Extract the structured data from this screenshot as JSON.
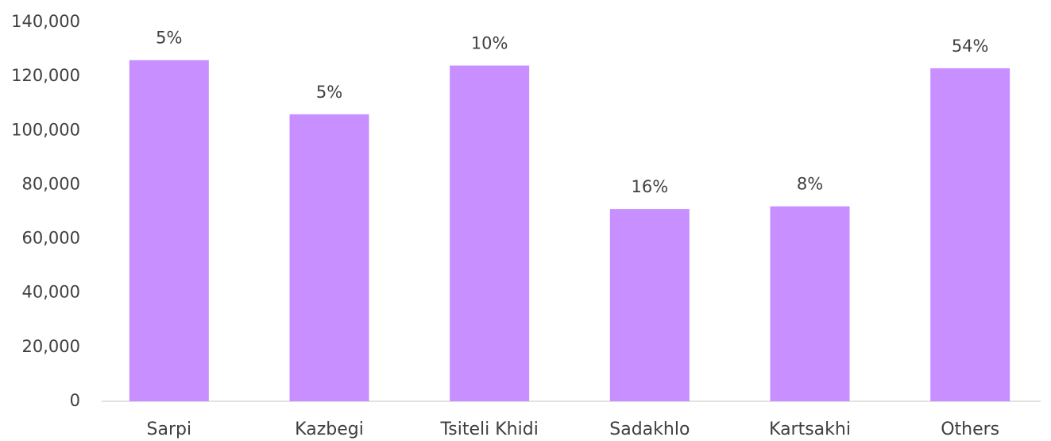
{
  "chart_data": {
    "type": "bar",
    "categories": [
      "Sarpi",
      "Kazbegi",
      "Tsiteli Khidi",
      "Sadakhlo",
      "Kartsakhi",
      "Others"
    ],
    "values": [
      126000,
      106000,
      124000,
      71000,
      72000,
      123000
    ],
    "annotations": [
      "5%",
      "5%",
      "10%",
      "16%",
      "8%",
      "54%"
    ],
    "color": "#c78fff",
    "ylim": [
      0,
      140000
    ],
    "yticks": [
      0,
      {
        "value": 20000,
        "label": "20,000"
      },
      {
        "value": 40000,
        "label": "40,000"
      },
      {
        "value": 60000,
        "label": "60,000"
      },
      {
        "value": 80000,
        "label": "80,000"
      },
      {
        "value": 100000,
        "label": "100,000"
      },
      {
        "value": 120000,
        "label": "120,000"
      },
      {
        "value": 140000,
        "label": "140,000"
      }
    ],
    "grid": false
  }
}
